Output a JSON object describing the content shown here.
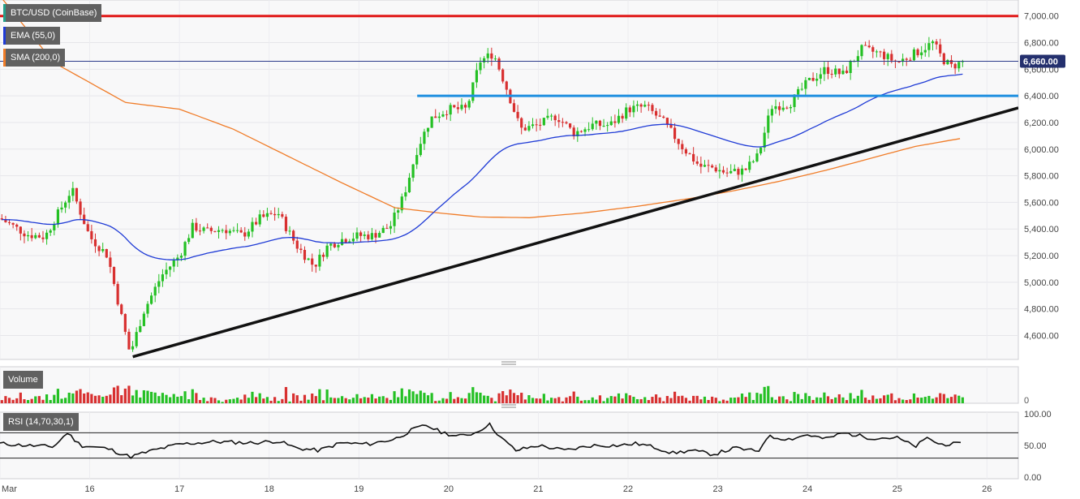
{
  "chart_data": {
    "type": "candlestick",
    "symbol_label": "BTC/USD (CoinBase)",
    "indicators": [
      {
        "label": "EMA (55,0)",
        "color": "#1f3bd6"
      },
      {
        "label": "SMA (200,0)",
        "color": "#f07c28"
      }
    ],
    "price_axis": {
      "ticks": [
        "7,000.00",
        "6,800.00",
        "6,600.00",
        "6,400.00",
        "6,200.00",
        "6,000.00",
        "5,800.00",
        "5,600.00",
        "5,400.00",
        "5,200.00",
        "5,000.00",
        "4,800.00",
        "4,600.00"
      ],
      "values": [
        7000,
        6800,
        6600,
        6400,
        6200,
        6000,
        5800,
        5600,
        5400,
        5200,
        5000,
        4800,
        4600
      ],
      "ylim": [
        4420,
        7120
      ],
      "current_price": 6660,
      "current_price_label": "6,660.00"
    },
    "x_axis": {
      "labels": [
        "Mar",
        "16",
        "17",
        "18",
        "19",
        "20",
        "21",
        "22",
        "23",
        "24",
        "25",
        "26"
      ],
      "days": [
        15,
        16,
        17,
        18,
        19,
        20,
        21,
        22,
        23,
        24,
        25,
        26
      ],
      "xlim": [
        15.0,
        26.35
      ]
    },
    "colors": {
      "up": "#24c024",
      "down": "#d83030",
      "resistance": "#e01818",
      "support": "#1e8fe0",
      "trend": "#111111",
      "ema": "#1f3bd6",
      "sma": "#f07c28"
    },
    "resistance_level": 7000,
    "support_level": 6400,
    "support_start_day": 19.65,
    "trendline": {
      "start": [
        16.48,
        4440
      ],
      "end": [
        26.35,
        6310
      ]
    },
    "price_path": [
      [
        15.0,
        5480
      ],
      [
        15.3,
        5360
      ],
      [
        15.5,
        5340
      ],
      [
        15.8,
        5700
      ],
      [
        16.0,
        5340
      ],
      [
        16.2,
        5200
      ],
      [
        16.3,
        4900
      ],
      [
        16.45,
        4460
      ],
      [
        16.6,
        4780
      ],
      [
        16.8,
        5050
      ],
      [
        17.0,
        5200
      ],
      [
        17.15,
        5420
      ],
      [
        17.3,
        5380
      ],
      [
        17.5,
        5400
      ],
      [
        17.7,
        5350
      ],
      [
        17.9,
        5480
      ],
      [
        18.1,
        5520
      ],
      [
        18.3,
        5280
      ],
      [
        18.5,
        5120
      ],
      [
        18.65,
        5270
      ],
      [
        18.8,
        5320
      ],
      [
        19.0,
        5350
      ],
      [
        19.15,
        5350
      ],
      [
        19.35,
        5420
      ],
      [
        19.5,
        5650
      ],
      [
        19.65,
        6000
      ],
      [
        19.8,
        6230
      ],
      [
        20.0,
        6300
      ],
      [
        20.2,
        6300
      ],
      [
        20.35,
        6660
      ],
      [
        20.5,
        6720
      ],
      [
        20.65,
        6450
      ],
      [
        20.8,
        6150
      ],
      [
        21.0,
        6180
      ],
      [
        21.2,
        6250
      ],
      [
        21.4,
        6120
      ],
      [
        21.6,
        6180
      ],
      [
        21.8,
        6180
      ],
      [
        22.0,
        6300
      ],
      [
        22.2,
        6320
      ],
      [
        22.4,
        6200
      ],
      [
        22.6,
        6020
      ],
      [
        22.8,
        5870
      ],
      [
        22.95,
        5860
      ],
      [
        23.1,
        5820
      ],
      [
        23.3,
        5840
      ],
      [
        23.45,
        5950
      ],
      [
        23.6,
        6320
      ],
      [
        23.8,
        6340
      ],
      [
        24.0,
        6500
      ],
      [
        24.2,
        6600
      ],
      [
        24.4,
        6560
      ],
      [
        24.6,
        6750
      ],
      [
        24.8,
        6720
      ],
      [
        25.0,
        6650
      ],
      [
        25.2,
        6720
      ],
      [
        25.4,
        6800
      ],
      [
        25.5,
        6680
      ],
      [
        25.6,
        6620
      ],
      [
        25.75,
        6660
      ]
    ],
    "volume": {
      "label": "Volume",
      "axis_label": "0",
      "max": 60
    },
    "rsi": {
      "label": "RSI (14,70,30,1)",
      "upper": 70,
      "lower": 30,
      "ticks": [
        "100.00",
        "50.00",
        "0.00"
      ],
      "tick_values": [
        100,
        50,
        0
      ],
      "path": [
        [
          15.0,
          53
        ],
        [
          15.3,
          50
        ],
        [
          15.6,
          48
        ],
        [
          15.75,
          70
        ],
        [
          15.9,
          50
        ],
        [
          16.2,
          45
        ],
        [
          16.45,
          32
        ],
        [
          16.7,
          42
        ],
        [
          17.0,
          52
        ],
        [
          17.4,
          56
        ],
        [
          17.8,
          54
        ],
        [
          18.1,
          57
        ],
        [
          18.3,
          46
        ],
        [
          18.55,
          42
        ],
        [
          18.8,
          54
        ],
        [
          19.1,
          52
        ],
        [
          19.4,
          60
        ],
        [
          19.6,
          75
        ],
        [
          19.75,
          82
        ],
        [
          19.9,
          72
        ],
        [
          20.1,
          64
        ],
        [
          20.3,
          70
        ],
        [
          20.45,
          84
        ],
        [
          20.6,
          60
        ],
        [
          20.75,
          42
        ],
        [
          21.0,
          50
        ],
        [
          21.3,
          42
        ],
        [
          21.6,
          50
        ],
        [
          21.9,
          50
        ],
        [
          22.1,
          53
        ],
        [
          22.3,
          47
        ],
        [
          22.5,
          38
        ],
        [
          22.7,
          42
        ],
        [
          22.95,
          36
        ],
        [
          23.2,
          46
        ],
        [
          23.45,
          40
        ],
        [
          23.55,
          64
        ],
        [
          23.8,
          60
        ],
        [
          24.0,
          67
        ],
        [
          24.2,
          60
        ],
        [
          24.4,
          70
        ],
        [
          24.7,
          62
        ],
        [
          25.0,
          62
        ],
        [
          25.2,
          48
        ],
        [
          25.35,
          63
        ],
        [
          25.45,
          52
        ],
        [
          25.6,
          52
        ],
        [
          25.75,
          52
        ]
      ]
    }
  }
}
